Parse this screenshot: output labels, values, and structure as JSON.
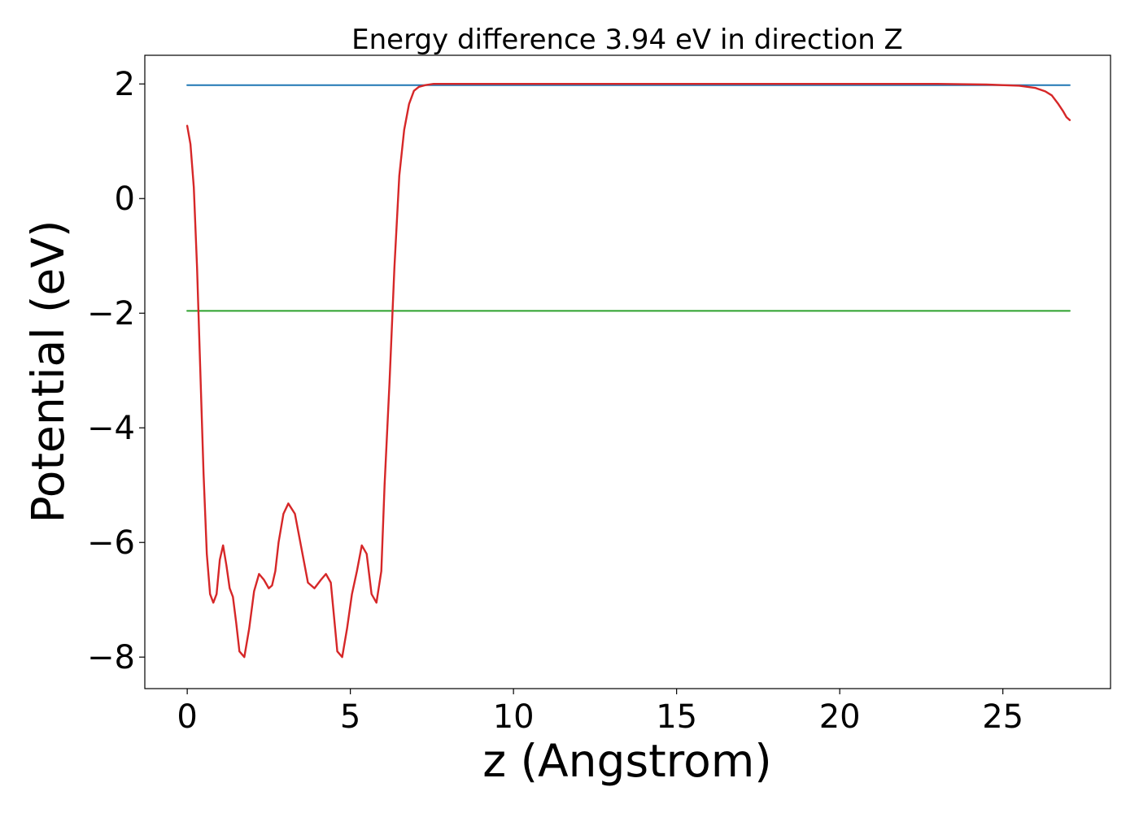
{
  "chart_data": {
    "type": "line",
    "title": "Energy difference 3.94 eV in direction Z",
    "xlabel": "z (Angstrom)",
    "ylabel": "Potential (eV)",
    "xlim": [
      -1.3,
      28.3
    ],
    "ylim": [
      -8.55,
      2.5
    ],
    "xticks": [
      0,
      5,
      10,
      15,
      20,
      25
    ],
    "xtick_labels": [
      "0",
      "5",
      "10",
      "15",
      "20",
      "25"
    ],
    "yticks": [
      2,
      0,
      -2,
      -4,
      -6,
      -8
    ],
    "ytick_labels": [
      "2",
      "0",
      "−2",
      "−4",
      "−6",
      "−8"
    ],
    "grid": false,
    "legend": "none",
    "series": [
      {
        "color": "#1f77b4",
        "x": [
          0,
          27.05
        ],
        "y": [
          1.98,
          1.98
        ]
      },
      {
        "color": "#2ca02c",
        "x": [
          0,
          27.05
        ],
        "y": [
          -1.96,
          -1.96
        ]
      },
      {
        "color": "#d62728",
        "x": [
          0,
          0.1,
          0.2,
          0.3,
          0.4,
          0.5,
          0.6,
          0.7,
          0.8,
          0.9,
          1.0,
          1.1,
          1.2,
          1.3,
          1.4,
          1.5,
          1.6,
          1.75,
          1.9,
          2.05,
          2.2,
          2.35,
          2.5,
          2.6,
          2.7,
          2.8,
          2.95,
          3.1,
          3.3,
          3.5,
          3.7,
          3.9,
          4.1,
          4.25,
          4.4,
          4.5,
          4.6,
          4.75,
          4.9,
          5.05,
          5.2,
          5.35,
          5.5,
          5.65,
          5.8,
          5.95,
          6.05,
          6.2,
          6.35,
          6.5,
          6.65,
          6.8,
          6.95,
          7.1,
          7.3,
          7.55,
          7.8,
          8.1,
          8.5,
          9.0,
          10.0,
          12.0,
          15.0,
          18.0,
          21.0,
          23.0,
          24.5,
          25.5,
          26.0,
          26.3,
          26.5,
          26.7,
          26.85,
          26.95,
          27.05
        ],
        "y": [
          1.27,
          0.95,
          0.2,
          -1.2,
          -3.0,
          -4.8,
          -6.2,
          -6.9,
          -7.05,
          -6.9,
          -6.3,
          -6.05,
          -6.4,
          -6.8,
          -6.95,
          -7.4,
          -7.9,
          -8.0,
          -7.5,
          -6.85,
          -6.55,
          -6.65,
          -6.8,
          -6.75,
          -6.5,
          -6.0,
          -5.5,
          -5.32,
          -5.5,
          -6.1,
          -6.7,
          -6.8,
          -6.65,
          -6.55,
          -6.7,
          -7.3,
          -7.9,
          -8.0,
          -7.5,
          -6.9,
          -6.5,
          -6.05,
          -6.2,
          -6.9,
          -7.05,
          -6.5,
          -5.0,
          -3.2,
          -1.2,
          0.4,
          1.2,
          1.65,
          1.88,
          1.95,
          1.98,
          2.0,
          2.0,
          2.0,
          2.0,
          2.0,
          2.0,
          2.0,
          2.0,
          2.0,
          2.0,
          2.0,
          1.99,
          1.97,
          1.93,
          1.87,
          1.8,
          1.65,
          1.52,
          1.42,
          1.37
        ]
      }
    ]
  }
}
